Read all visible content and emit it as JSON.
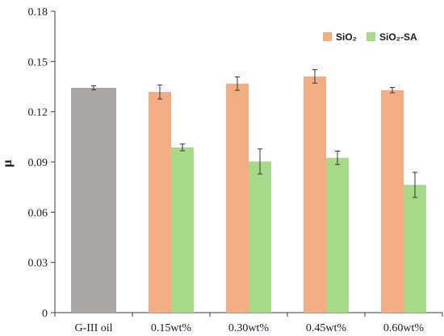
{
  "chart_data": {
    "type": "bar",
    "title": "",
    "xlabel": "",
    "ylabel": "μ",
    "ylim": [
      0,
      0.18
    ],
    "yticks": [
      "0",
      "0.03",
      "0.06",
      "0.09",
      "0.12",
      "0.15",
      "0.18"
    ],
    "grid": false,
    "legend_position": "top-right",
    "categories": [
      "G-III oil",
      "0.15wt%",
      "0.30wt%",
      "0.45wt%",
      "0.60wt%"
    ],
    "baseline": {
      "category": "G-III oil",
      "value": 0.1343,
      "error": 0.0012,
      "color": "#aba6a6"
    },
    "series": [
      {
        "name": "SiO₂",
        "color": "#f2ad85",
        "values": [
          null,
          0.1318,
          0.1368,
          0.1411,
          0.1329
        ],
        "errors": [
          null,
          0.0042,
          0.004,
          0.004,
          0.0016
        ]
      },
      {
        "name": "SiO₂-SA",
        "color": "#a6d98a",
        "values": [
          null,
          0.0987,
          0.0903,
          0.0925,
          0.0763
        ],
        "errors": [
          null,
          0.002,
          0.0075,
          0.004,
          0.0075
        ]
      }
    ]
  }
}
